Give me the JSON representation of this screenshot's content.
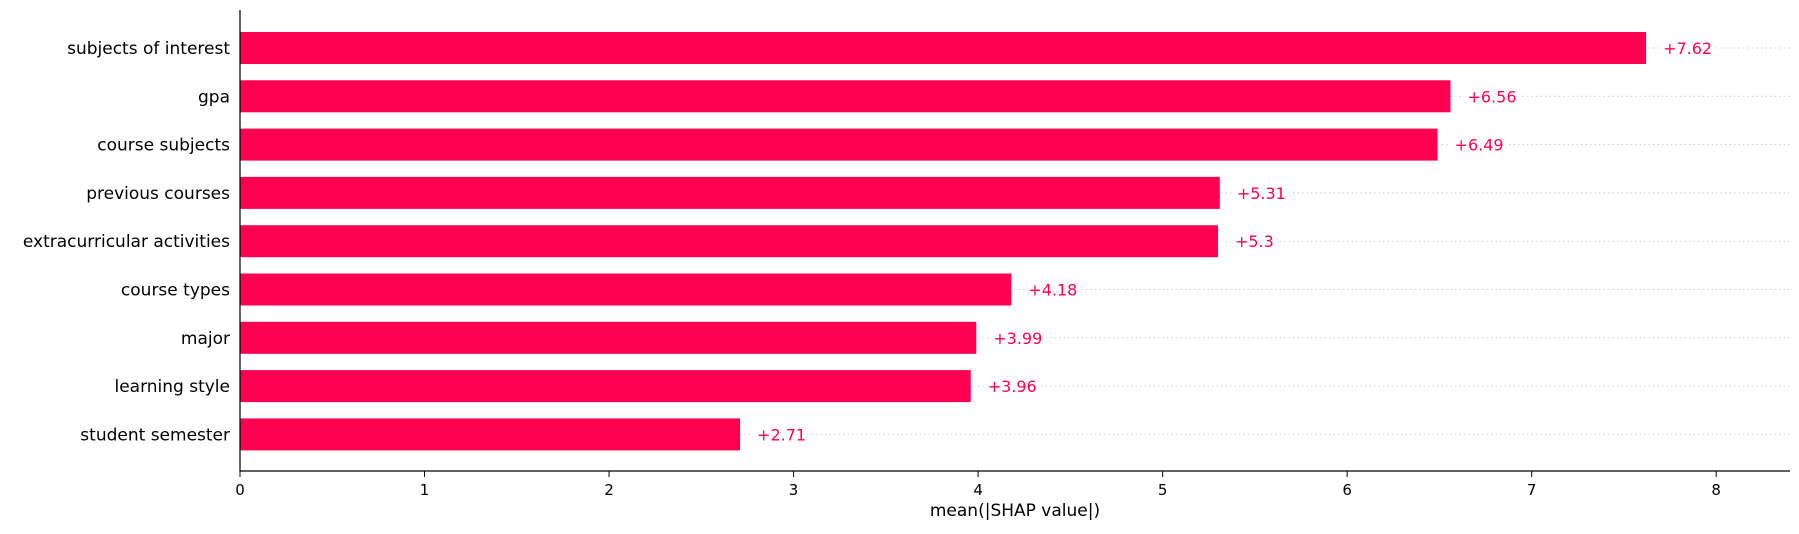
{
  "chart_data": {
    "type": "bar",
    "orientation": "horizontal",
    "categories": [
      "subjects of interest",
      "gpa",
      "course subjects",
      "previous courses",
      "extracurricular activities",
      "course types",
      "major",
      "learning style",
      "student semester"
    ],
    "values": [
      7.62,
      6.56,
      6.49,
      5.31,
      5.3,
      4.18,
      3.99,
      3.96,
      2.71
    ],
    "value_labels": [
      "+7.62",
      "+6.56",
      "+6.49",
      "+5.31",
      "+5.3",
      "+4.18",
      "+3.99",
      "+3.96",
      "+2.71"
    ],
    "title": "",
    "xlabel": "mean(|SHAP value|)",
    "ylabel": "",
    "xlim": [
      0,
      8.4
    ],
    "xticks": [
      0,
      1,
      2,
      3,
      4,
      5,
      6,
      7,
      8
    ],
    "grid": "dotted horizontal guide lines per bar",
    "legend": "none",
    "colors": {
      "bar": "#ff0051",
      "value_label": "#ff0051",
      "axis": "#000000",
      "guide": "#cccccc",
      "text": "#000000"
    }
  }
}
